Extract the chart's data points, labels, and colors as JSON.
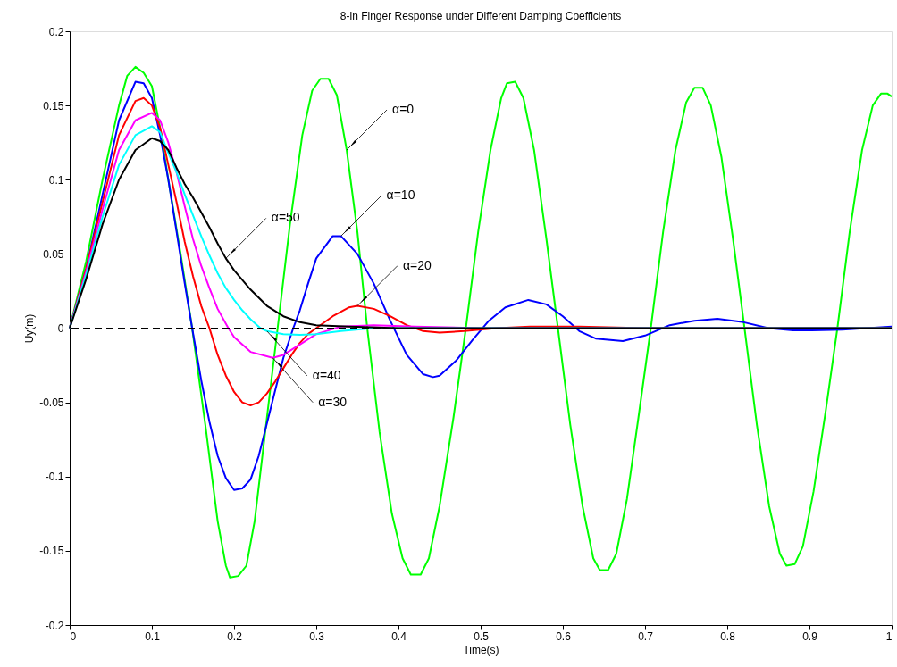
{
  "chart_data": {
    "type": "line",
    "title": "8-in Finger Response under Different Damping Coefficients",
    "xlabel": "Time(s)",
    "ylabel": "Uy(m)",
    "xlim": [
      0,
      1
    ],
    "xticks": [
      0,
      0.1,
      0.2,
      0.3,
      0.4,
      0.5,
      0.6,
      0.7,
      0.8,
      0.9,
      1
    ],
    "ylim": [
      -0.2,
      0.2
    ],
    "yticks": [
      -0.2,
      -0.15,
      -0.1,
      -0.05,
      0,
      0.05,
      0.1,
      0.15,
      0.2
    ],
    "grid": false,
    "legend": false,
    "marker": "none",
    "line_style": "solid",
    "series": [
      {
        "color": "#00ff00",
        "x": [
          0,
          0.02,
          0.04,
          0.06,
          0.07,
          0.08,
          0.09,
          0.1,
          0.11,
          0.12,
          0.135,
          0.149,
          0.165,
          0.18,
          0.19,
          0.195,
          0.205,
          0.215,
          0.225,
          0.24,
          0.253,
          0.268,
          0.283,
          0.295,
          0.305,
          0.315,
          0.325,
          0.337,
          0.35,
          0.362,
          0.377,
          0.392,
          0.405,
          0.415,
          0.427,
          0.437,
          0.45,
          0.467,
          0.482,
          0.497,
          0.512,
          0.525,
          0.532,
          0.542,
          0.552,
          0.565,
          0.58,
          0.594,
          0.609,
          0.624,
          0.637,
          0.645,
          0.655,
          0.665,
          0.678,
          0.692,
          0.707,
          0.722,
          0.737,
          0.75,
          0.76,
          0.77,
          0.78,
          0.793,
          0.807,
          0.821,
          0.836,
          0.851,
          0.864,
          0.872,
          0.882,
          0.892,
          0.905,
          0.92,
          0.934,
          0.949,
          0.964,
          0.977,
          0.987,
          0.995,
          1.0
        ],
        "values": [
          0,
          0.045,
          0.1,
          0.15,
          0.17,
          0.176,
          0.172,
          0.163,
          0.135,
          0.1,
          0.05,
          0,
          -0.065,
          -0.13,
          -0.16,
          -0.168,
          -0.167,
          -0.16,
          -0.13,
          -0.06,
          0,
          0.07,
          0.13,
          0.16,
          0.168,
          0.168,
          0.157,
          0.12,
          0.065,
          0,
          -0.07,
          -0.125,
          -0.155,
          -0.166,
          -0.166,
          -0.155,
          -0.12,
          -0.06,
          0,
          0.065,
          0.12,
          0.155,
          0.165,
          0.166,
          0.155,
          0.12,
          0.06,
          0,
          -0.065,
          -0.12,
          -0.155,
          -0.163,
          -0.163,
          -0.152,
          -0.115,
          -0.06,
          0,
          0.065,
          0.12,
          0.152,
          0.162,
          0.162,
          0.15,
          0.115,
          0.06,
          0,
          -0.065,
          -0.12,
          -0.152,
          -0.16,
          -0.159,
          -0.147,
          -0.11,
          -0.055,
          0,
          0.065,
          0.12,
          0.15,
          0.158,
          0.158,
          0.156
        ]
      },
      {
        "color": "#0000ff",
        "x": [
          0,
          0.02,
          0.04,
          0.06,
          0.08,
          0.09,
          0.1,
          0.11,
          0.12,
          0.13,
          0.14,
          0.149,
          0.16,
          0.17,
          0.18,
          0.19,
          0.2,
          0.21,
          0.22,
          0.23,
          0.24,
          0.25,
          0.26,
          0.272,
          0.28,
          0.29,
          0.3,
          0.32,
          0.33,
          0.35,
          0.37,
          0.39,
          0.41,
          0.43,
          0.442,
          0.45,
          0.47,
          0.49,
          0.51,
          0.53,
          0.558,
          0.58,
          0.6,
          0.62,
          0.64,
          0.673,
          0.7,
          0.73,
          0.76,
          0.788,
          0.82,
          0.85,
          0.88,
          0.903,
          0.94,
          0.97,
          1.0
        ],
        "values": [
          0,
          0.04,
          0.09,
          0.14,
          0.166,
          0.165,
          0.155,
          0.13,
          0.1,
          0.065,
          0.03,
          0,
          -0.035,
          -0.063,
          -0.086,
          -0.101,
          -0.109,
          -0.108,
          -0.102,
          -0.086,
          -0.064,
          -0.042,
          -0.02,
          0,
          0.012,
          0.03,
          0.047,
          0.062,
          0.062,
          0.05,
          0.03,
          0.005,
          -0.018,
          -0.031,
          -0.033,
          -0.032,
          -0.022,
          -0.008,
          0.005,
          0.014,
          0.019,
          0.016,
          0.008,
          -0.002,
          -0.007,
          -0.0087,
          -0.005,
          0.002,
          0.005,
          0.0063,
          0.004,
          0,
          -0.0015,
          -0.0015,
          -0.001,
          0,
          0.001
        ]
      },
      {
        "color": "#ff0000",
        "x": [
          0,
          0.02,
          0.04,
          0.06,
          0.08,
          0.09,
          0.1,
          0.11,
          0.12,
          0.13,
          0.14,
          0.15,
          0.16,
          0.17,
          0.18,
          0.19,
          0.2,
          0.21,
          0.22,
          0.23,
          0.24,
          0.25,
          0.26,
          0.27,
          0.28,
          0.29,
          0.3,
          0.32,
          0.34,
          0.35,
          0.37,
          0.39,
          0.41,
          0.43,
          0.45,
          0.48,
          0.52,
          0.56,
          0.62,
          0.7,
          1.0
        ],
        "values": [
          0,
          0.04,
          0.085,
          0.13,
          0.153,
          0.155,
          0.15,
          0.135,
          0.11,
          0.085,
          0.058,
          0.035,
          0.015,
          0,
          -0.018,
          -0.032,
          -0.043,
          -0.05,
          -0.052,
          -0.05,
          -0.044,
          -0.036,
          -0.027,
          -0.018,
          -0.01,
          -0.004,
          0,
          0.008,
          0.014,
          0.015,
          0.013,
          0.008,
          0.002,
          -0.002,
          -0.003,
          -0.002,
          0,
          0.001,
          0.001,
          0,
          0
        ]
      },
      {
        "color": "#ff00ff",
        "x": [
          0,
          0.02,
          0.04,
          0.06,
          0.08,
          0.1,
          0.11,
          0.12,
          0.13,
          0.14,
          0.15,
          0.16,
          0.17,
          0.18,
          0.193,
          0.2,
          0.22,
          0.247,
          0.26,
          0.28,
          0.3,
          0.33,
          0.37,
          0.42,
          0.5,
          1.0
        ],
        "values": [
          0,
          0.038,
          0.08,
          0.12,
          0.14,
          0.145,
          0.14,
          0.125,
          0.105,
          0.082,
          0.06,
          0.042,
          0.027,
          0.013,
          0,
          -0.006,
          -0.016,
          -0.02,
          -0.018,
          -0.011,
          -0.004,
          0.001,
          0.002,
          0.001,
          0,
          0
        ]
      },
      {
        "color": "#00ffff",
        "x": [
          0,
          0.02,
          0.04,
          0.06,
          0.08,
          0.1,
          0.11,
          0.12,
          0.13,
          0.14,
          0.15,
          0.16,
          0.17,
          0.18,
          0.19,
          0.2,
          0.21,
          0.22,
          0.232,
          0.24,
          0.26,
          0.28,
          0.3,
          0.33,
          0.37,
          1.0
        ],
        "values": [
          0,
          0.036,
          0.075,
          0.11,
          0.13,
          0.136,
          0.132,
          0.118,
          0.105,
          0.09,
          0.076,
          0.062,
          0.049,
          0.037,
          0.027,
          0.019,
          0.012,
          0.006,
          0,
          -0.002,
          -0.004,
          -0.0045,
          -0.004,
          -0.002,
          0,
          0
        ]
      },
      {
        "color": "#000000",
        "x": [
          0,
          0.02,
          0.04,
          0.06,
          0.08,
          0.1,
          0.11,
          0.12,
          0.13,
          0.14,
          0.15,
          0.16,
          0.17,
          0.18,
          0.19,
          0.2,
          0.22,
          0.24,
          0.26,
          0.28,
          0.3,
          0.34,
          0.4,
          1.0
        ],
        "values": [
          0,
          0.033,
          0.07,
          0.1,
          0.12,
          0.128,
          0.126,
          0.12,
          0.108,
          0.097,
          0.088,
          0.078,
          0.068,
          0.057,
          0.047,
          0.039,
          0.026,
          0.015,
          0.008,
          0.004,
          0.002,
          0.001,
          0,
          0
        ]
      }
    ],
    "ref_lines": [
      {
        "axis": "y",
        "value": 0,
        "color": "#000000",
        "line_style": "dashed"
      }
    ],
    "annotations": [
      {
        "text": "α=0",
        "x": 0.337,
        "y": 0.12
      },
      {
        "text": "α=10",
        "x": 0.33,
        "y": 0.062
      },
      {
        "text": "α=20",
        "x": 0.35,
        "y": 0.015
      },
      {
        "text": "α=50",
        "x": 0.19,
        "y": 0.047
      },
      {
        "text": "α=40",
        "x": 0.24,
        "y": -0.002
      },
      {
        "text": "α=30",
        "x": 0.247,
        "y": -0.02
      }
    ]
  }
}
